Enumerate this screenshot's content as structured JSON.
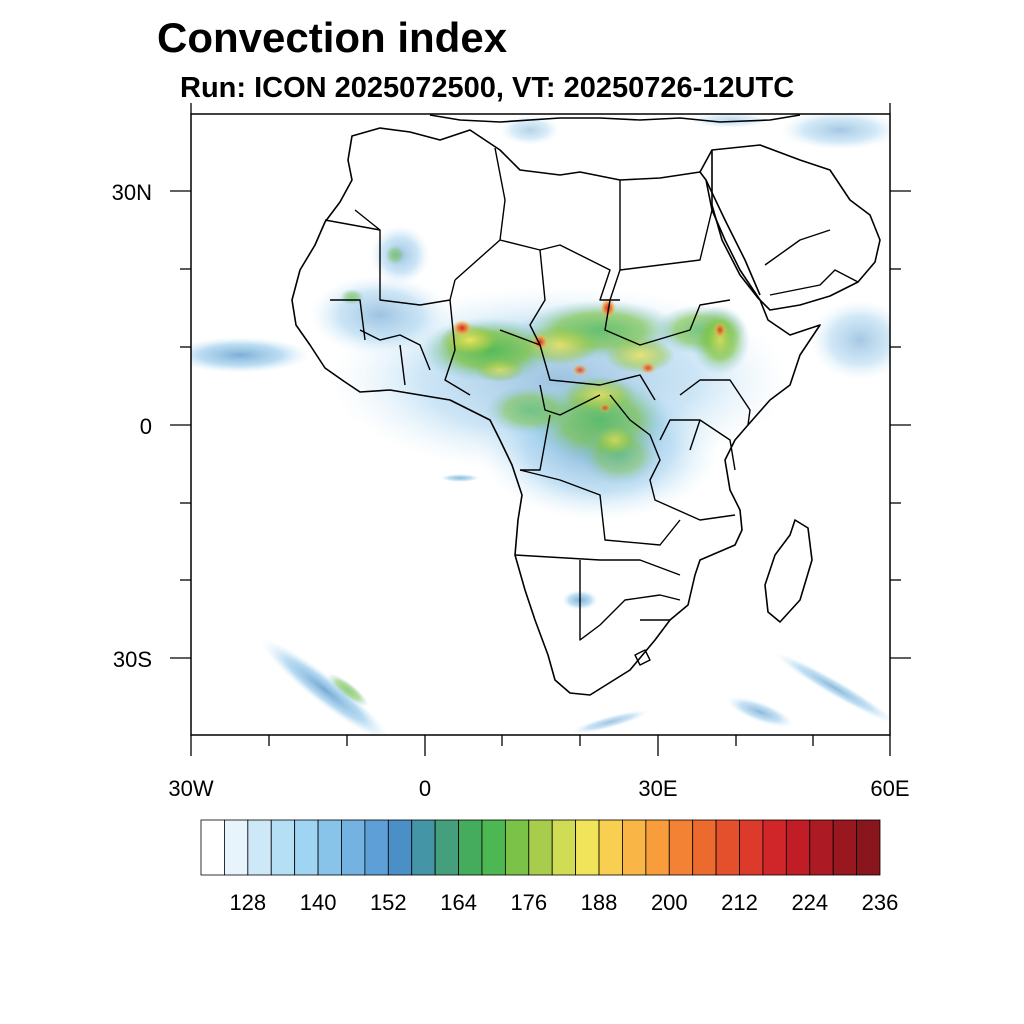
{
  "title": "Convection index",
  "subtitle": "Run: ICON 2025072500,  VT: 20250726-12UTC",
  "map": {
    "lat_labels": [
      "30N",
      "0",
      "30S"
    ],
    "lon_labels": [
      "30W",
      "0",
      "30E",
      "60E"
    ],
    "extent": {
      "lon_min": -30,
      "lon_max": 60,
      "lat_min": -40,
      "lat_max": 40
    }
  },
  "colorbar": {
    "labels": [
      "128",
      "140",
      "152",
      "164",
      "176",
      "188",
      "200",
      "212",
      "224",
      "236"
    ],
    "colors": [
      "#ffffff",
      "#e8f4fb",
      "#cde8f6",
      "#b5dff4",
      "#9fd5f2",
      "#88c3ea",
      "#74b2e1",
      "#5f9fd7",
      "#4a90c6",
      "#4495a5",
      "#459e7c",
      "#45ac5e",
      "#4db851",
      "#7bc248",
      "#a8cd4c",
      "#d0dc54",
      "#f1e45a",
      "#f8cf50",
      "#f9b646",
      "#f89c3c",
      "#f38234",
      "#ec6a2e",
      "#e4502b",
      "#dc3a2a",
      "#d0262a",
      "#c01d27",
      "#ac1a24",
      "#991820",
      "#88161c"
    ]
  },
  "chart_data": {
    "type": "heatmap",
    "title": "Convection index",
    "subtitle": "Run: ICON 2025072500,  VT: 20250726-12UTC",
    "x_range": [
      -30,
      60
    ],
    "y_range": [
      -40,
      40
    ],
    "colorbar_ticks": [
      128,
      140,
      152,
      164,
      176,
      188,
      200,
      212,
      224,
      236
    ]
  }
}
